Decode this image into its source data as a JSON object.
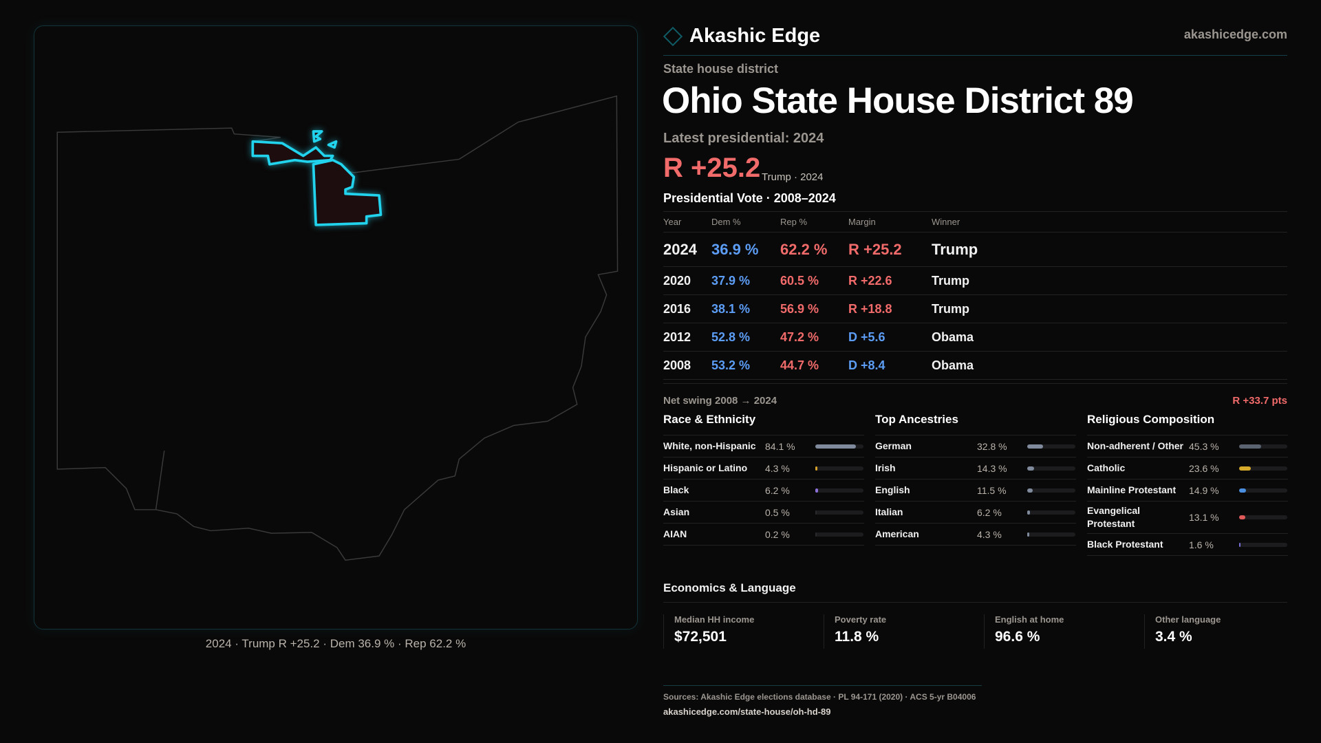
{
  "brand": {
    "name": "Akashic Edge",
    "site": "akashicedge.com"
  },
  "header": {
    "kind": "State house district",
    "title": "Ohio State House District 89",
    "latest": "Latest presidential: 2024",
    "margin": "R +25.2",
    "margin_sub": "Trump · 2024"
  },
  "map": {
    "caption": "2024 · Trump R +25.2 · Dem 36.9 % · Rep 62.2 %",
    "district_color": "#22d3ee"
  },
  "colors": {
    "rep": "#f26b6b",
    "dem": "#5c9df5"
  },
  "votes": {
    "title": "Presidential Vote · 2008–2024",
    "headers": [
      "Year",
      "Dem %",
      "Rep %",
      "Margin",
      "Winner"
    ],
    "rows": [
      {
        "year": "2024",
        "dem": "36.9 %",
        "rep": "62.2 %",
        "margin": "R +25.2",
        "party": "R",
        "winner": "Trump"
      },
      {
        "year": "2020",
        "dem": "37.9 %",
        "rep": "60.5 %",
        "margin": "R +22.6",
        "party": "R",
        "winner": "Trump"
      },
      {
        "year": "2016",
        "dem": "38.1 %",
        "rep": "56.9 %",
        "margin": "R +18.8",
        "party": "R",
        "winner": "Trump"
      },
      {
        "year": "2012",
        "dem": "52.8 %",
        "rep": "47.2 %",
        "margin": "D +5.6",
        "party": "D",
        "winner": "Obama"
      },
      {
        "year": "2008",
        "dem": "53.2 %",
        "rep": "44.7 %",
        "margin": "D +8.4",
        "party": "D",
        "winner": "Obama"
      }
    ]
  },
  "swing": {
    "label": "Net swing 2008 → 2024",
    "value": "R +33.7 pts"
  },
  "sections": [
    {
      "title": "Race & Ethnicity",
      "items": [
        {
          "label": "White, non-Hispanic",
          "value": "84.1 %",
          "pct": 84.1,
          "color": "#7f8a9c"
        },
        {
          "label": "Hispanic or Latino",
          "value": "4.3 %",
          "pct": 4.3,
          "color": "#d6a22a"
        },
        {
          "label": "Black",
          "value": "6.2 %",
          "pct": 6.2,
          "color": "#8b70d8"
        },
        {
          "label": "Asian",
          "value": "0.5 %",
          "pct": 0.5,
          "color": "#2a2a2e"
        },
        {
          "label": "AIAN",
          "value": "0.2 %",
          "pct": 0.2,
          "color": "#2a2a2e"
        }
      ]
    },
    {
      "title": "Top Ancestries",
      "items": [
        {
          "label": "German",
          "value": "32.8 %",
          "pct": 32.8,
          "color": "#7f8a9c"
        },
        {
          "label": "Irish",
          "value": "14.3 %",
          "pct": 14.3,
          "color": "#7f8a9c"
        },
        {
          "label": "English",
          "value": "11.5 %",
          "pct": 11.5,
          "color": "#7f8a9c"
        },
        {
          "label": "Italian",
          "value": "6.2 %",
          "pct": 6.2,
          "color": "#7f8a9c"
        },
        {
          "label": "American",
          "value": "4.3 %",
          "pct": 4.3,
          "color": "#7f8a9c"
        }
      ]
    },
    {
      "title": "Religious Composition",
      "items": [
        {
          "label": "Non-adherent / Other",
          "value": "45.3 %",
          "pct": 45.3,
          "color": "#5b6270"
        },
        {
          "label": "Catholic",
          "value": "23.6 %",
          "pct": 23.6,
          "color": "#d6aa2a"
        },
        {
          "label": "Mainline Protestant",
          "value": "14.9 %",
          "pct": 14.9,
          "color": "#4a8fe0"
        },
        {
          "label": "Evangelical Protestant",
          "value": "13.1 %",
          "pct": 13.1,
          "color": "#e05a5a"
        },
        {
          "label": "Black Protestant",
          "value": "1.6 %",
          "pct": 1.6,
          "color": "#7a6fd6"
        }
      ]
    }
  ],
  "economics": {
    "title": "Economics & Language",
    "cards": [
      {
        "label": "Median HH income",
        "value": "$72,501"
      },
      {
        "label": "Poverty rate",
        "value": "11.8 %"
      },
      {
        "label": "English at home",
        "value": "96.6 %"
      },
      {
        "label": "Other language",
        "value": "3.4 %"
      }
    ]
  },
  "footer": {
    "sources": "Sources: Akashic Edge elections database · PL 94-171 (2020) · ACS 5-yr B04006",
    "url": "akashicedge.com/state-house/oh-hd-89"
  }
}
